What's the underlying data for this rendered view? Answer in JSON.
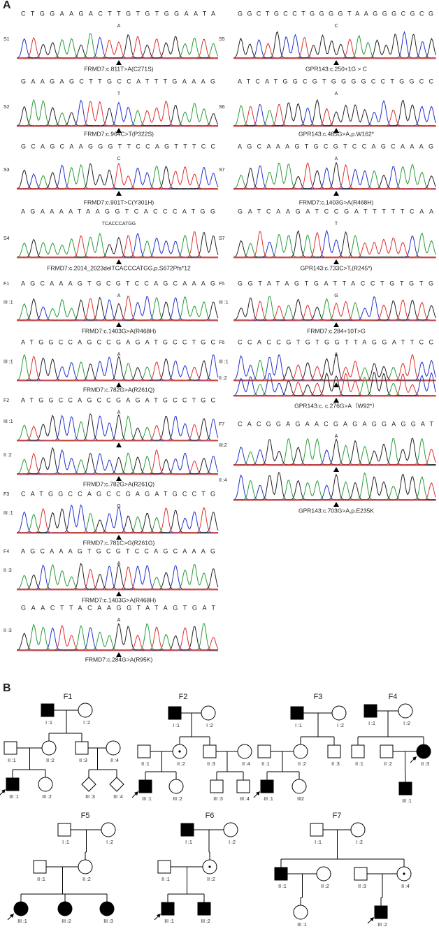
{
  "panel_a": {
    "label": "A",
    "left": [
      {
        "sample": "S1",
        "sequence": "CTGGAAGACTTGTGTGGAATA",
        "alt": "A",
        "variant": "FRMD7:c.811T>A(C271S)"
      },
      {
        "sample": "S2",
        "sequence": "GAAGAGCTTGCCATTTGAAAG",
        "alt": "T",
        "variant": "FRMD7:c.964C>T(P322S)"
      },
      {
        "sample": "S3",
        "sequence": "GCAGCAAGGGTTCCAGTTTCC",
        "alt": "C",
        "variant": "FRMD7:c.901T>C(Y301H)"
      },
      {
        "sample": "S4",
        "sequence": "AGAAAATAAGGTCACCCATGG",
        "alt": "TCACCCATGG",
        "variant": "FRMD7:c.2014_2023delTCACCCATGG,p.S672Pfs*12"
      },
      {
        "family": "F1",
        "sample": "III :1",
        "sequence": "AGCAAAGTGCGTCCAGCAAAG",
        "alt": "A",
        "variant": "FRMD7:c.1403G>A(R468H)"
      },
      {
        "sample": "III :1",
        "sequence": "ATGGCCAGCCGAGATGCCTGC",
        "alt": "A",
        "variant": "FRMD7:c.782G>A(R261Q)"
      },
      {
        "family": "F2",
        "sample": "III :1",
        "sequence": "ATGGCCAGCCGAGATGCCTGC",
        "alt": "A"
      },
      {
        "sample": "II :2",
        "variant": "FRMD7:c.782G>A(R261Q)"
      },
      {
        "family": "F3",
        "sample": "III :1",
        "sequence": "CATGGCCAGCCGAGATGCCTG",
        "alt": "G",
        "variant": "FRMD7:c.781C>G(R261G)"
      },
      {
        "family": "F4",
        "sample": "II :3",
        "sequence": "AGCAAAGTGCGTCCAGCAAAG",
        "alt": "A",
        "variant": "FRMD7:c.1403G>A(R468H)"
      },
      {
        "sample": "II :3",
        "sequence": "GAACTTACAAGGTATAGTGAT",
        "alt": "A",
        "variant": "FRMD7:c.284G>A(R95K)"
      }
    ],
    "right": [
      {
        "sample": "S5",
        "sequence": "GGCTGCCTGGGGTAAGGGCGCG",
        "alt": "C",
        "variant": "GPR143:c.250+1G > C"
      },
      {
        "sample": "S6",
        "sequence": "ATCATGGCGTGGGGCCTGGCC",
        "alt": "A",
        "variant": "GPR143:c.485G>A,p.W162*"
      },
      {
        "sample": "S7",
        "sequence": "AGCAAAGTGCGTCCAGCAAAG",
        "alt": "A",
        "variant": "FRMD7:c.1403G>A(R468H)"
      },
      {
        "sample": "S7",
        "sequence": "GATCAAGATCCGATTTTTCAA",
        "alt": "T",
        "variant": "GPR143:c.733C>T,(R245*)"
      },
      {
        "family": "F5",
        "sample": "III :1",
        "sequence": "GGTATAGTGATTACCTGTGTG",
        "alt": "G",
        "variant": "FRMD7:c.284+10T>G"
      },
      {
        "family": "F6",
        "sample": "III :1",
        "sequence": "CCACCGTGTGGTTAGGATTCC",
        "alt": "A"
      },
      {
        "sample": "II :2",
        "variant": "GPR143:c. c.276G>A（W92*）"
      },
      {
        "family": "F7",
        "sample": "III:2",
        "sequence": "CACGGAGAACGAGAGGAGGAT",
        "alt": "A"
      },
      {
        "sample": "II :4",
        "variant": "GPR143:c.703G>A,p.E235K"
      }
    ]
  },
  "panel_b": {
    "label": "B",
    "families": [
      {
        "name": "F1",
        "members": [
          "I :1",
          "I :2",
          "II :1",
          "II :2",
          "II :3",
          "II :4",
          "III :1",
          "III :2",
          "III :3",
          "III :4"
        ]
      },
      {
        "name": "F2",
        "members": [
          "I :1",
          "I :2",
          "II :1",
          "II :2",
          "II :3",
          "II :4",
          "III :1",
          "III :2",
          "III :3",
          "III :4"
        ]
      },
      {
        "name": "F3",
        "members": [
          "I :1",
          "I :2",
          "II :1",
          "II :2",
          "II :3",
          "III :1",
          "III2"
        ]
      },
      {
        "name": "F4",
        "members": [
          "I :1",
          "I :2",
          "II :1",
          "II :2",
          "II :3",
          "III :1"
        ]
      },
      {
        "name": "F5",
        "members": [
          "I :1",
          "I :2",
          "II :1",
          "II :2",
          "III :1",
          "III :2",
          "III :3"
        ]
      },
      {
        "name": "F6",
        "members": [
          "I :1",
          "I :2",
          "II :1",
          "II :2",
          "III :1",
          "III :2"
        ]
      },
      {
        "name": "F7",
        "members": [
          "I :1",
          "I :2",
          "II :1",
          "II :2",
          "II :3",
          "II :4",
          "III :1",
          "III :2"
        ]
      }
    ]
  }
}
